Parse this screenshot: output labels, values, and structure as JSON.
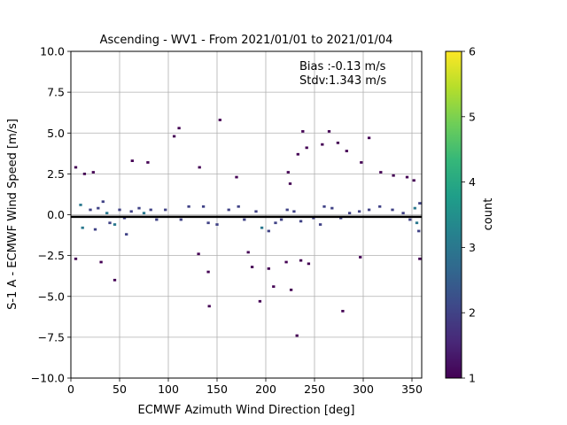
{
  "chart_data": {
    "type": "heatmap",
    "title": "Ascending - WV1 - From 2021/01/01 to 2021/01/04",
    "xlabel": "ECMWF Azimuth Wind Direction [deg]",
    "ylabel": "S-1 A - ECMWF Wind Speed [m/s]",
    "xlim": [
      0,
      360
    ],
    "ylim": [
      -10,
      10
    ],
    "xticks": [
      0,
      50,
      100,
      150,
      200,
      250,
      300,
      350
    ],
    "yticks": [
      -10.0,
      -7.5,
      -5.0,
      -2.5,
      0.0,
      2.5,
      5.0,
      7.5,
      10.0
    ],
    "xtick_labels": [
      "0",
      "50",
      "100",
      "150",
      "200",
      "250",
      "300",
      "350"
    ],
    "ytick_labels": [
      "−10.0",
      "−7.5",
      "−5.0",
      "−2.5",
      "0.0",
      "2.5",
      "5.0",
      "7.5",
      "10.0"
    ],
    "grid": true,
    "bin_size": {
      "x": 3,
      "y": 0.15
    },
    "colorbar": {
      "label": "count",
      "colormap": "viridis",
      "range": [
        1,
        6
      ],
      "ticks": [
        1,
        2,
        3,
        4,
        5,
        6
      ],
      "tick_labels": [
        "1",
        "2",
        "3",
        "4",
        "5",
        "6"
      ],
      "stops": [
        "#440154",
        "#482878",
        "#3e4989",
        "#31688e",
        "#26828e",
        "#1f9e89",
        "#35b779",
        "#6ece58",
        "#b5de2b",
        "#fde725"
      ]
    },
    "annotations": [
      "Bias :-0.13 m/s",
      "Stdv:1.343 m/s"
    ],
    "bias_line": {
      "value": -0.13
    },
    "points": [
      [
        5,
        2.9,
        1
      ],
      [
        14,
        2.5,
        1
      ],
      [
        23,
        2.6,
        1
      ],
      [
        63,
        3.3,
        1
      ],
      [
        79,
        3.2,
        1
      ],
      [
        106,
        4.8,
        1
      ],
      [
        111,
        5.3,
        1
      ],
      [
        132,
        2.9,
        1
      ],
      [
        153,
        5.8,
        1
      ],
      [
        170,
        2.3,
        1
      ],
      [
        223,
        2.6,
        1
      ],
      [
        225,
        1.9,
        1
      ],
      [
        233,
        3.7,
        1
      ],
      [
        238,
        5.1,
        1
      ],
      [
        242,
        4.1,
        1
      ],
      [
        258,
        4.3,
        1
      ],
      [
        265,
        5.1,
        1
      ],
      [
        274,
        4.4,
        1
      ],
      [
        283,
        3.9,
        1
      ],
      [
        298,
        3.2,
        1
      ],
      [
        306,
        4.7,
        1
      ],
      [
        318,
        2.6,
        1
      ],
      [
        331,
        2.4,
        1
      ],
      [
        345,
        2.3,
        1
      ],
      [
        352,
        2.1,
        1
      ],
      [
        5,
        -2.7,
        1
      ],
      [
        31,
        -2.9,
        1
      ],
      [
        45,
        -4.0,
        1
      ],
      [
        131,
        -2.4,
        1
      ],
      [
        141,
        -3.5,
        1
      ],
      [
        142,
        -5.6,
        1
      ],
      [
        182,
        -2.3,
        1
      ],
      [
        186,
        -3.2,
        1
      ],
      [
        194,
        -5.3,
        1
      ],
      [
        203,
        -3.3,
        1
      ],
      [
        208,
        -4.4,
        1
      ],
      [
        221,
        -2.9,
        1
      ],
      [
        226,
        -4.6,
        1
      ],
      [
        232,
        -7.4,
        1
      ],
      [
        236,
        -2.8,
        1
      ],
      [
        244,
        -3.0,
        1
      ],
      [
        279,
        -5.9,
        1
      ],
      [
        297,
        -2.6,
        1
      ],
      [
        358,
        -2.7,
        1
      ],
      [
        10,
        0.6,
        3
      ],
      [
        20,
        0.3,
        2
      ],
      [
        28,
        0.4,
        2
      ],
      [
        37,
        0.1,
        3
      ],
      [
        40,
        -0.5,
        2
      ],
      [
        45,
        -0.6,
        3
      ],
      [
        50,
        0.3,
        2
      ],
      [
        55,
        -0.2,
        2
      ],
      [
        62,
        0.2,
        2
      ],
      [
        70,
        0.4,
        2
      ],
      [
        75,
        0.1,
        3
      ],
      [
        82,
        0.3,
        2
      ],
      [
        88,
        -0.3,
        2
      ],
      [
        97,
        0.3,
        2
      ],
      [
        113,
        -0.3,
        2
      ],
      [
        121,
        0.5,
        2
      ],
      [
        136,
        0.5,
        2
      ],
      [
        141,
        -0.5,
        2
      ],
      [
        162,
        0.3,
        2
      ],
      [
        172,
        0.5,
        2
      ],
      [
        178,
        -0.3,
        2
      ],
      [
        190,
        0.2,
        2
      ],
      [
        196,
        -0.8,
        3
      ],
      [
        203,
        -1.0,
        2
      ],
      [
        210,
        -0.5,
        2
      ],
      [
        216,
        -0.3,
        2
      ],
      [
        222,
        0.3,
        2
      ],
      [
        229,
        0.2,
        2
      ],
      [
        236,
        -0.4,
        2
      ],
      [
        249,
        -0.2,
        2
      ],
      [
        256,
        -0.6,
        2
      ],
      [
        268,
        0.4,
        2
      ],
      [
        277,
        -0.2,
        2
      ],
      [
        286,
        0.1,
        2
      ],
      [
        296,
        0.2,
        2
      ],
      [
        306,
        0.3,
        2
      ],
      [
        317,
        0.5,
        2
      ],
      [
        330,
        0.3,
        2
      ],
      [
        341,
        0.1,
        2
      ],
      [
        348,
        -0.3,
        2
      ],
      [
        353,
        0.4,
        3
      ],
      [
        355,
        -0.5,
        3
      ],
      [
        357,
        -1.0,
        2
      ],
      [
        358,
        0.7,
        2
      ],
      [
        12,
        -0.8,
        3
      ],
      [
        25,
        -0.9,
        2
      ],
      [
        33,
        0.8,
        2
      ],
      [
        57,
        -1.2,
        2
      ],
      [
        150,
        -0.6,
        2
      ],
      [
        260,
        0.5,
        2
      ]
    ]
  }
}
